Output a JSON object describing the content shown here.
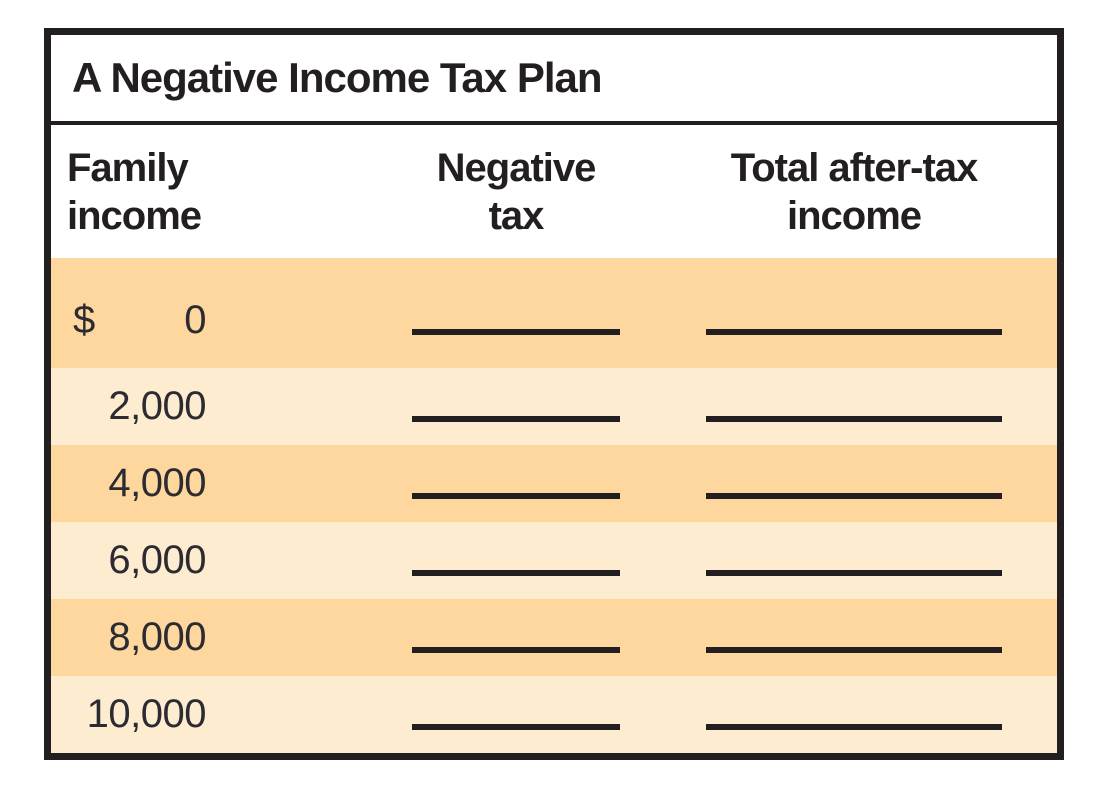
{
  "table": {
    "title": "A Negative Income Tax Plan",
    "columns": [
      {
        "line1": "Family",
        "line2": "income"
      },
      {
        "line1": "Negative",
        "line2": "tax"
      },
      {
        "line1": "Total after-tax",
        "line2": "income"
      }
    ],
    "rows": [
      {
        "currency": "$",
        "income": "0",
        "negative_tax": "",
        "total_after_tax_income": ""
      },
      {
        "currency": "",
        "income": "2,000",
        "negative_tax": "",
        "total_after_tax_income": ""
      },
      {
        "currency": "",
        "income": "4,000",
        "negative_tax": "",
        "total_after_tax_income": ""
      },
      {
        "currency": "",
        "income": "6,000",
        "negative_tax": "",
        "total_after_tax_income": ""
      },
      {
        "currency": "",
        "income": "8,000",
        "negative_tax": "",
        "total_after_tax_income": ""
      },
      {
        "currency": "",
        "income": "10,000",
        "negative_tax": "",
        "total_after_tax_income": ""
      }
    ],
    "colors": {
      "row_dark": "#fdd79e",
      "row_light": "#fdeccf",
      "border": "#231f20",
      "ink": "#2b2b31"
    }
  },
  "chart_data": {
    "type": "table",
    "title": "A Negative Income Tax Plan",
    "columns": [
      "Family income",
      "Negative tax",
      "Total after-tax income"
    ],
    "rows": [
      [
        "$ 0",
        "",
        ""
      ],
      [
        "2,000",
        "",
        ""
      ],
      [
        "4,000",
        "",
        ""
      ],
      [
        "6,000",
        "",
        ""
      ],
      [
        "8,000",
        "",
        ""
      ],
      [
        "10,000",
        "",
        ""
      ]
    ],
    "layout_hints": {
      "blank_cells_rendered_as": "horizontal fill-in rules",
      "row_striping": [
        "dark",
        "light",
        "dark",
        "light",
        "dark",
        "light"
      ]
    }
  }
}
